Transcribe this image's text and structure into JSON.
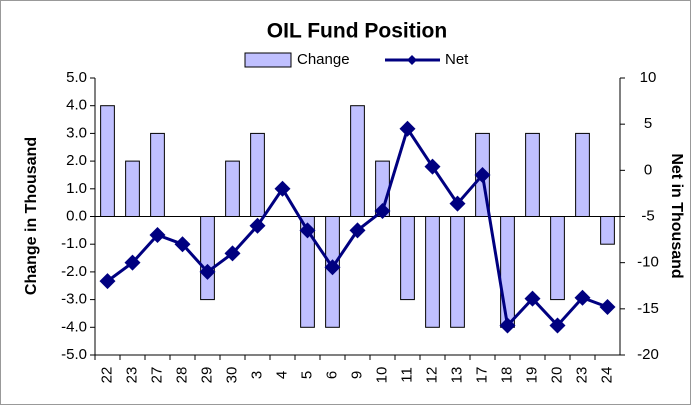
{
  "chart_data": {
    "type": "bar_line",
    "title": "OIL Fund Position",
    "categories": [
      "22",
      "23",
      "27",
      "28",
      "29",
      "30",
      "3",
      "4",
      "5",
      "6",
      "9",
      "10",
      "11",
      "12",
      "13",
      "17",
      "18",
      "19",
      "20",
      "23",
      "24"
    ],
    "series": [
      {
        "name": "Change",
        "color": "#c0c0ff",
        "type": "bar",
        "axis": "y",
        "values": [
          4,
          2,
          3,
          0,
          -3,
          2,
          3,
          0,
          -4,
          -4,
          4,
          2,
          -3,
          -4,
          -4,
          3,
          -4,
          3,
          -3,
          3,
          -1
        ]
      },
      {
        "name": "Net",
        "color": "#000080",
        "type": "line",
        "axis": "y2",
        "values": [
          -12,
          -10,
          -7,
          -8,
          -11,
          -9,
          -6,
          -2,
          -6.5,
          -10.5,
          -6.5,
          -4.4,
          4.5,
          0.4,
          -3.6,
          -0.5,
          -16.8,
          -13.9,
          -16.8,
          -13.8,
          -14.8
        ]
      }
    ],
    "ylabel": "Change in Thousand",
    "y2label": "Net in Thousand",
    "ylim": [
      -5,
      5
    ],
    "yticks": [
      {
        "value": 5,
        "label": "5.0"
      },
      {
        "value": 4,
        "label": "4.0"
      },
      {
        "value": 3,
        "label": "3.0"
      },
      {
        "value": 2,
        "label": "2.0"
      },
      {
        "value": 1,
        "label": "1.0"
      },
      {
        "value": 0,
        "label": "0.0"
      },
      {
        "value": -1,
        "label": "-1.0"
      },
      {
        "value": -2,
        "label": "-2.0"
      },
      {
        "value": -3,
        "label": "-3.0"
      },
      {
        "value": -4,
        "label": "-4.0"
      },
      {
        "value": -5,
        "label": "-5.0"
      }
    ],
    "y2lim": [
      -20,
      10
    ],
    "y2ticks": [
      10,
      5,
      0,
      -5,
      -10,
      -15,
      -20
    ]
  }
}
